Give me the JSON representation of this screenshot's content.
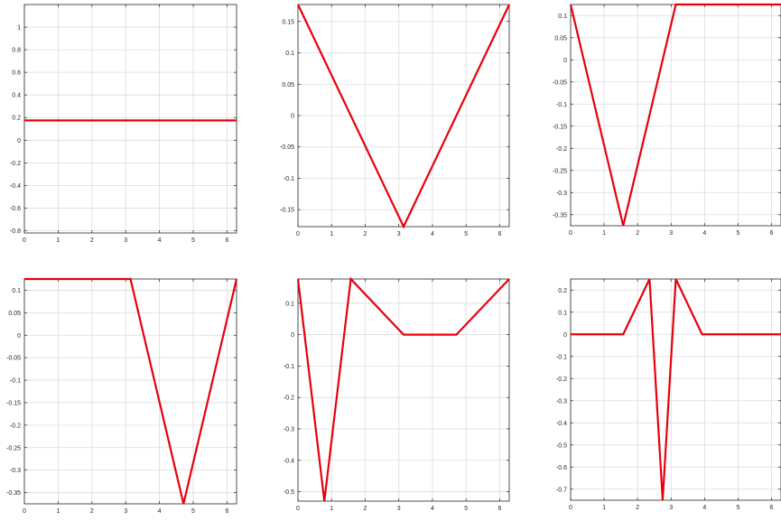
{
  "chart_data": [
    {
      "type": "line",
      "x": [
        0,
        6.2832
      ],
      "series": [
        {
          "values": [
            0.175,
            0.175
          ],
          "color": "#e8000b"
        }
      ],
      "xlim": [
        0,
        6.2832
      ],
      "ylim": [
        -0.82,
        1.2
      ],
      "xticks": [
        0,
        1,
        2,
        3,
        4,
        5,
        6
      ],
      "yticks": [
        -0.8,
        -0.6,
        -0.4,
        -0.2,
        0,
        0.2,
        0.4,
        0.6,
        0.8,
        1
      ],
      "xtick_labels": [
        "0",
        "1",
        "2",
        "3",
        "4",
        "5",
        "6"
      ],
      "ytick_labels": [
        "-0.8",
        "-0.6",
        "-0.4",
        "-0.2",
        "0",
        "0.2",
        "0.4",
        "0.6",
        "0.8",
        "1"
      ],
      "grid": true
    },
    {
      "type": "line",
      "x": [
        0,
        3.1416,
        6.2832
      ],
      "series": [
        {
          "values": [
            0.177,
            -0.177,
            0.177
          ],
          "color": "#e8000b"
        }
      ],
      "xlim": [
        0,
        6.2832
      ],
      "ylim": [
        -0.177,
        0.177
      ],
      "xticks": [
        0,
        1,
        2,
        3,
        4,
        5,
        6
      ],
      "yticks": [
        -0.15,
        -0.1,
        -0.05,
        0,
        0.05,
        0.1,
        0.15
      ],
      "xtick_labels": [
        "0",
        "1",
        "2",
        "3",
        "4",
        "5",
        "6"
      ],
      "ytick_labels": [
        "-0.15",
        "-0.1",
        "-0.05",
        "0",
        "0.05",
        "0.1",
        "0.15"
      ],
      "grid": true
    },
    {
      "type": "line",
      "x": [
        0,
        1.5708,
        3.1416,
        6.2832
      ],
      "series": [
        {
          "values": [
            0.125,
            -0.375,
            0.125,
            0.125
          ],
          "color": "#e8000b"
        }
      ],
      "xlim": [
        0,
        6.2832
      ],
      "ylim": [
        -0.375,
        0.125
      ],
      "xticks": [
        0,
        1,
        2,
        3,
        4,
        5,
        6
      ],
      "yticks": [
        -0.35,
        -0.3,
        -0.25,
        -0.2,
        -0.15,
        -0.1,
        -0.05,
        0,
        0.05,
        0.1
      ],
      "xtick_labels": [
        "0",
        "1",
        "2",
        "3",
        "4",
        "5",
        "6"
      ],
      "ytick_labels": [
        "-0.35",
        "-0.3",
        "-0.25",
        "-0.2",
        "-0.15",
        "-0.1",
        "-0.05",
        "0",
        "0.05",
        "0.1"
      ],
      "grid": true
    },
    {
      "type": "line",
      "x": [
        0,
        3.1416,
        4.7124,
        6.2832
      ],
      "series": [
        {
          "values": [
            0.125,
            0.125,
            -0.375,
            0.125
          ],
          "color": "#e8000b"
        }
      ],
      "xlim": [
        0,
        6.2832
      ],
      "ylim": [
        -0.375,
        0.125
      ],
      "xticks": [
        0,
        1,
        2,
        3,
        4,
        5,
        6
      ],
      "yticks": [
        -0.35,
        -0.3,
        -0.25,
        -0.2,
        -0.15,
        -0.1,
        -0.05,
        0,
        0.05,
        0.1
      ],
      "xtick_labels": [
        "0",
        "1",
        "2",
        "3",
        "4",
        "5",
        "6"
      ],
      "ytick_labels": [
        "-0.35",
        "-0.3",
        "-0.25",
        "-0.2",
        "-0.15",
        "-0.1",
        "-0.05",
        "0",
        "0.05",
        "0.1"
      ],
      "grid": true
    },
    {
      "type": "line",
      "x": [
        0,
        0.7854,
        1.5708,
        3.1416,
        4.7124,
        6.2832
      ],
      "series": [
        {
          "values": [
            0.177,
            -0.53,
            0.177,
            0,
            0,
            0.177
          ],
          "color": "#e8000b"
        }
      ],
      "xlim": [
        0,
        6.2832
      ],
      "ylim": [
        -0.53,
        0.177
      ],
      "xticks": [
        0,
        1,
        2,
        3,
        4,
        5,
        6
      ],
      "yticks": [
        -0.5,
        -0.4,
        -0.3,
        -0.2,
        -0.1,
        0,
        0.1
      ],
      "xtick_labels": [
        "0",
        "1",
        "2",
        "3",
        "4",
        "5",
        "6"
      ],
      "ytick_labels": [
        "-0.5",
        "-0.4",
        "-0.3",
        "-0.2",
        "-0.1",
        "0",
        "0.1"
      ],
      "grid": true
    },
    {
      "type": "line",
      "x": [
        0,
        1.5708,
        2.3562,
        2.7489,
        3.1416,
        3.927,
        6.2832
      ],
      "series": [
        {
          "values": [
            0,
            0,
            0.25,
            -0.75,
            0.25,
            0,
            0
          ],
          "color": "#e8000b"
        }
      ],
      "xlim": [
        0,
        6.2832
      ],
      "ylim": [
        -0.75,
        0.25
      ],
      "xticks": [
        0,
        1,
        2,
        3,
        4,
        5,
        6
      ],
      "yticks": [
        -0.7,
        -0.6,
        -0.5,
        -0.4,
        -0.3,
        -0.2,
        -0.1,
        0,
        0.1,
        0.2
      ],
      "xtick_labels": [
        "0",
        "1",
        "2",
        "3",
        "4",
        "5",
        "6"
      ],
      "ytick_labels": [
        "-0.7",
        "-0.6",
        "-0.5",
        "-0.4",
        "-0.3",
        "-0.2",
        "-0.1",
        "0",
        "0.1",
        "0.2"
      ],
      "grid": true
    }
  ]
}
